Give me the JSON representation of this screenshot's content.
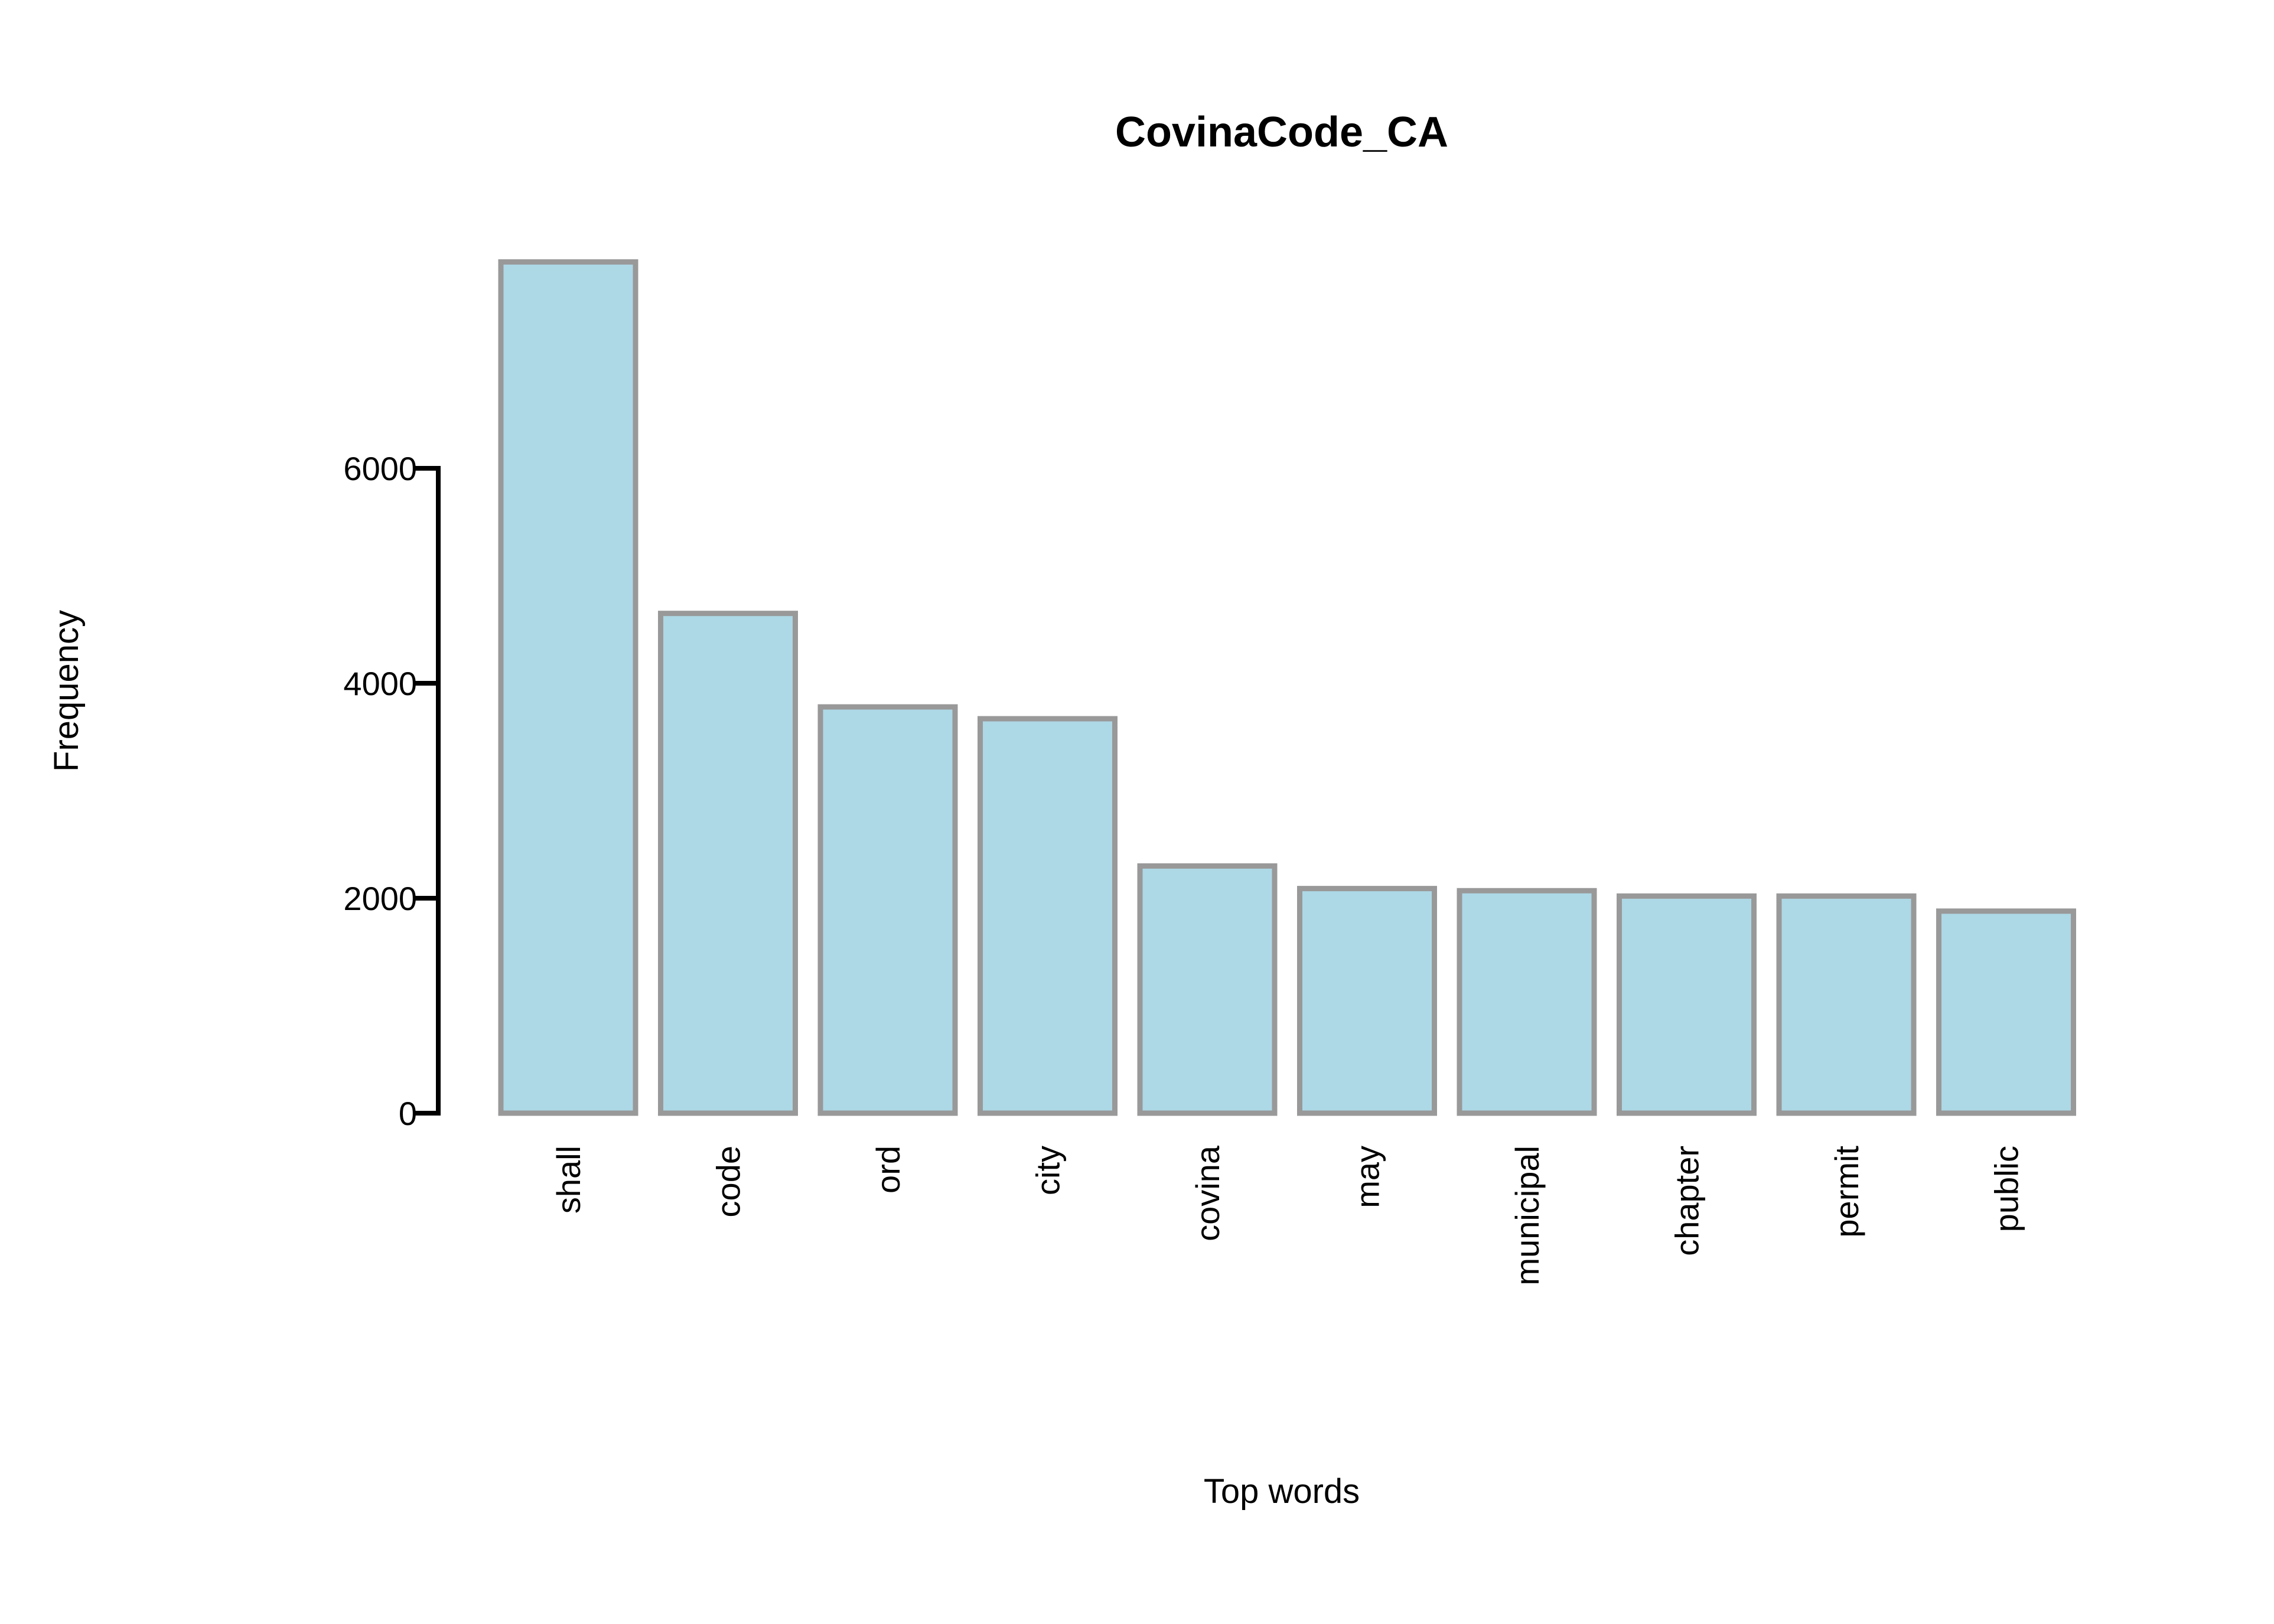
{
  "chart_data": {
    "type": "bar",
    "title": "CovinaCode_CA",
    "xlabel": "Top words",
    "ylabel": "Frequency",
    "categories": [
      "shall",
      "code",
      "ord",
      "city",
      "covina",
      "may",
      "municipal",
      "chapter",
      "permit",
      "public"
    ],
    "values": [
      7920,
      4650,
      3780,
      3670,
      2300,
      2090,
      2070,
      2020,
      2020,
      1880
    ],
    "yticks": [
      "0",
      "2000",
      "4000",
      "6000"
    ],
    "ylim": [
      0,
      8000
    ],
    "grid": false,
    "legend": "none",
    "colors": {
      "bar_fill": "#ADD8E6",
      "bar_stroke": "#999999",
      "axis": "#000000"
    }
  }
}
